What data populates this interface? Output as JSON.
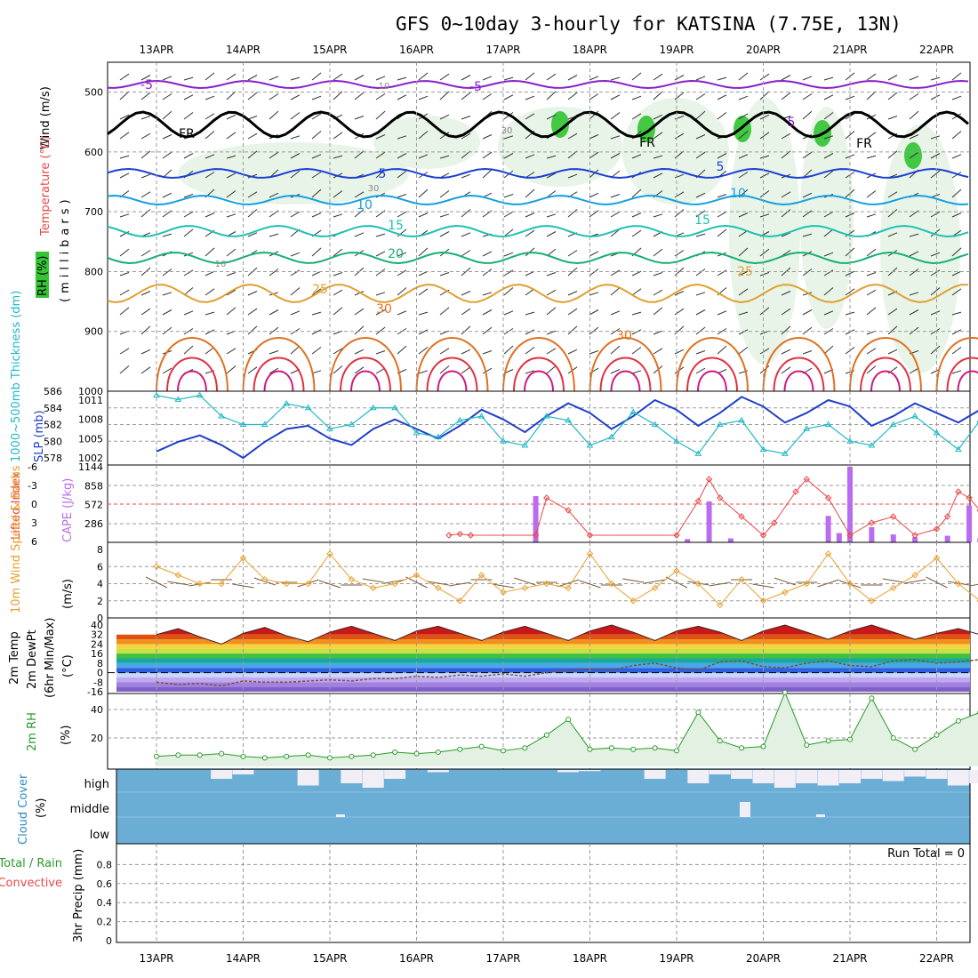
{
  "title": "GFS 0~10day 3-hourly for KATSINA (7.75E, 13N)",
  "dates": [
    "13APR",
    "14APR",
    "15APR",
    "16APR",
    "17APR",
    "18APR",
    "19APR",
    "20APR",
    "21APR",
    "22APR"
  ],
  "colors": {
    "grid": "#9a9a9a",
    "temp_blue": "#1a3fd6",
    "slp_blue": "#1f3fc8",
    "thickness_cyan": "#22b8c4",
    "cape_purple": "#b96cf0",
    "lifted_red": "#e84848",
    "wind_orange": "#e8a030",
    "barb_brown": "#7a5a3a",
    "rh_green": "#2a9a2a",
    "cloud_blue": "#6aaed6",
    "freezing_black": "#000000"
  },
  "panels": {
    "profile": {
      "ylabel_wind": "Wind (m/s)",
      "ylabel_temp": "Temperature (°C)",
      "ylabel_rh": "RH (%)",
      "ylabel_units": "(millibars)",
      "yticks": [
        "500",
        "600",
        "700",
        "800",
        "900",
        "1000"
      ]
    },
    "thickness_slp": {
      "ylabel_thick": "1000~500mb Thickness (dm)",
      "ylabel_slp": "SLP (mb)",
      "yticks_left": [
        "586",
        "584",
        "582",
        "580",
        "578"
      ],
      "yticks_right": [
        "1011",
        "1008",
        "1005",
        "1002"
      ]
    },
    "cape": {
      "ylabel_li": "Lifted Index",
      "ylabel_cape": "CAPE (J/kg)",
      "yticks_left": [
        "-6",
        "-3",
        "0",
        "3",
        "6"
      ],
      "yticks_right": [
        "1144",
        "858",
        "572",
        "286"
      ]
    },
    "wind10": {
      "ylabel": "10m Wind Speed & Barbs",
      "units": "(m/s)",
      "yticks": [
        "8",
        "6",
        "4",
        "2",
        "0"
      ]
    },
    "temp2m": {
      "ylabel1": "2m Temp",
      "ylabel2": "2m DewPt",
      "ylabel3": "(6hr Min/Max)",
      "units": "(°C)",
      "yticks": [
        "40",
        "32",
        "24",
        "16",
        "8",
        "0",
        "-8",
        "-16"
      ]
    },
    "rh2m": {
      "ylabel": "2m RH",
      "units": "(%)",
      "yticks": [
        "40",
        "20"
      ]
    },
    "cloud": {
      "ylabel": "Cloud Cover",
      "units": "(%)",
      "levels": [
        "high",
        "middle",
        "low"
      ]
    },
    "precip": {
      "ylabel1": "Total / Rain",
      "ylabel2": "Convective",
      "ylabel3": "3hr Precip (mm)",
      "run_total": "Run Total = 0",
      "yticks": [
        "0.8",
        "0.6",
        "0.4",
        "0.2",
        "0"
      ]
    }
  },
  "contour_labels": {
    "temperature": [
      "-5",
      "-5",
      "5",
      "5",
      "5",
      "10",
      "10",
      "15",
      "15",
      "20",
      "25",
      "25",
      "30",
      "30",
      "FR",
      "FR",
      "FR"
    ],
    "rh": [
      "10",
      "10",
      "30",
      "30"
    ]
  },
  "chart_data": [
    {
      "type": "line",
      "name": "thickness_slp",
      "x_days": [
        0,
        0.25,
        0.5,
        0.75,
        1,
        1.25,
        1.5,
        1.75,
        2,
        2.25,
        2.5,
        2.75,
        3,
        3.25,
        3.5,
        3.75,
        4,
        4.25,
        4.5,
        4.75,
        5,
        5.25,
        5.5,
        5.75,
        6,
        6.25,
        6.5,
        6.75,
        7,
        7.25,
        7.5,
        7.75,
        8,
        8.25,
        8.5,
        8.75,
        9,
        9.25,
        9.5,
        9.75
      ],
      "series": [
        {
          "name": "1000~500mb Thickness (dm)",
          "axis": "left",
          "values": [
            585.5,
            585,
            585.5,
            583,
            582,
            582,
            584.5,
            584,
            581.5,
            582,
            584,
            584,
            581,
            580.5,
            582.5,
            583,
            580,
            579.5,
            583,
            582.5,
            579.5,
            580.5,
            583.5,
            582,
            580,
            578.5,
            582,
            582.5,
            579,
            578.5,
            581.5,
            582,
            580,
            579.5,
            582,
            583,
            581,
            579,
            582.5,
            583
          ]
        },
        {
          "name": "SLP (mb)",
          "axis": "right",
          "values": [
            1003,
            1004.5,
            1005.5,
            1004,
            1002,
            1004.5,
            1006.5,
            1007,
            1005,
            1004,
            1006.5,
            1008,
            1006.5,
            1005,
            1007,
            1009.5,
            1008,
            1006,
            1008.5,
            1010.5,
            1009,
            1006.5,
            1008.5,
            1011,
            1009.5,
            1007,
            1009,
            1011.5,
            1010,
            1007.5,
            1009,
            1011,
            1010,
            1007,
            1008.5,
            1010.5,
            1009,
            1007.5,
            1009.5,
            1010
          ]
        }
      ]
    },
    {
      "type": "bar",
      "name": "cape",
      "x_days": [
        4.375,
        5.0,
        6.125,
        6.375,
        6.625,
        7.75,
        7.875,
        8.0,
        8.25,
        8.5,
        8.75,
        9.125,
        9.375,
        9.5
      ],
      "values": [
        700,
        0,
        50,
        620,
        60,
        400,
        140,
        1144,
        230,
        120,
        80,
        100,
        560,
        60
      ],
      "ylim": [
        0,
        1144
      ]
    },
    {
      "type": "line",
      "name": "lifted_index",
      "x_days": [
        3.375,
        3.5,
        3.625,
        4.375,
        4.5,
        4.75,
        5.0,
        6.0,
        6.25,
        6.375,
        6.5,
        6.75,
        7.0,
        7.125,
        7.375,
        7.5,
        7.75,
        8.0,
        8.25,
        8.5,
        8.75,
        9.0,
        9.125,
        9.25,
        9.375,
        9.5,
        9.75
      ],
      "values": [
        5,
        4.8,
        5,
        5,
        -1,
        1,
        5,
        5,
        -0.5,
        -4,
        -1,
        2,
        5,
        3,
        -2,
        -4,
        -1,
        5,
        3,
        2,
        5,
        4,
        2,
        -2,
        -1,
        1,
        3
      ],
      "ylim": [
        6,
        -6
      ]
    },
    {
      "type": "line",
      "name": "wind10m",
      "x_days": [
        0,
        0.25,
        0.5,
        0.75,
        1,
        1.25,
        1.5,
        1.75,
        2,
        2.25,
        2.5,
        2.75,
        3,
        3.25,
        3.5,
        3.75,
        4,
        4.25,
        4.5,
        4.75,
        5,
        5.25,
        5.5,
        5.75,
        6,
        6.25,
        6.5,
        6.75,
        7,
        7.25,
        7.5,
        7.75,
        8,
        8.25,
        8.5,
        8.75,
        9,
        9.25,
        9.5,
        9.75
      ],
      "values": [
        6,
        5,
        4,
        4,
        7,
        4.5,
        4,
        4,
        7.5,
        4.5,
        3.5,
        4,
        5,
        3.5,
        2,
        5,
        3,
        3.5,
        4,
        3.5,
        7.5,
        4,
        2,
        3.5,
        5.5,
        4,
        1.5,
        4.5,
        2,
        3,
        4,
        7.5,
        4,
        2,
        3.5,
        5,
        7,
        4,
        2,
        3.5
      ],
      "ylim": [
        0,
        8
      ]
    },
    {
      "type": "area",
      "name": "temp2m",
      "x_days": [
        0,
        0.25,
        0.5,
        0.75,
        1,
        1.25,
        1.5,
        1.75,
        2,
        2.25,
        2.5,
        2.75,
        3,
        3.25,
        3.5,
        3.75,
        4,
        4.25,
        4.5,
        4.75,
        5,
        5.25,
        5.5,
        5.75,
        6,
        6.25,
        6.5,
        6.75,
        7,
        7.25,
        7.5,
        7.75,
        8,
        8.25,
        8.5,
        8.75,
        9,
        9.25,
        9.5,
        9.75
      ],
      "series": [
        {
          "name": "2m Temp",
          "values": [
            32,
            37,
            30,
            24,
            33,
            38,
            31,
            26,
            34,
            39,
            33,
            27,
            35,
            39,
            33,
            27,
            34,
            39,
            33,
            27,
            35,
            40,
            34,
            27,
            35,
            39,
            34,
            27,
            35,
            40,
            34,
            28,
            35,
            40,
            34,
            28,
            33,
            37,
            32,
            28
          ]
        },
        {
          "name": "2m DewPt",
          "values": [
            -8,
            -10,
            -9,
            -11,
            -7,
            -8,
            -8,
            -7,
            -6,
            -7,
            -5,
            -5,
            -3,
            -4,
            -2,
            -3,
            -1,
            -3,
            0,
            2,
            3,
            2,
            6,
            8,
            4,
            2,
            9,
            10,
            5,
            4,
            8,
            10,
            6,
            5,
            10,
            11,
            8,
            9,
            11,
            12
          ]
        }
      ],
      "ylim": [
        -16,
        40
      ]
    },
    {
      "type": "area",
      "name": "rh2m",
      "x_days": [
        0,
        0.25,
        0.5,
        0.75,
        1,
        1.25,
        1.5,
        1.75,
        2,
        2.25,
        2.5,
        2.75,
        3,
        3.25,
        3.5,
        3.75,
        4,
        4.25,
        4.5,
        4.75,
        5,
        5.25,
        5.5,
        5.75,
        6,
        6.25,
        6.5,
        6.75,
        7,
        7.25,
        7.5,
        7.75,
        8,
        8.25,
        8.5,
        8.75,
        9,
        9.25,
        9.5,
        9.75
      ],
      "values": [
        7,
        8,
        8,
        9,
        7,
        6,
        7,
        8,
        6,
        7,
        8,
        10,
        9,
        10,
        12,
        14,
        11,
        13,
        22,
        33,
        12,
        13,
        12,
        13,
        11,
        38,
        18,
        13,
        14,
        52,
        15,
        18,
        19,
        48,
        20,
        12,
        22,
        32,
        38,
        40
      ],
      "ylim": [
        0,
        50
      ]
    },
    {
      "type": "bar",
      "name": "cloud_high",
      "x_days": [
        0.25,
        0.5,
        0.75,
        1,
        1.25,
        1.5,
        1.75,
        2,
        2.25,
        2.5,
        2.75,
        3,
        3.25,
        3.5,
        3.75,
        4,
        4.25,
        4.5,
        4.75,
        5,
        5.25,
        5.5,
        5.75,
        6,
        6.25,
        6.5,
        6.75,
        7,
        7.25,
        7.5,
        7.75,
        8,
        8.25,
        8.5,
        8.75,
        9,
        9.25,
        9.5,
        9.75
      ],
      "values": [
        100,
        100,
        60,
        80,
        100,
        100,
        30,
        100,
        40,
        20,
        60,
        100,
        90,
        100,
        100,
        100,
        100,
        100,
        90,
        95,
        100,
        100,
        60,
        100,
        40,
        80,
        60,
        40,
        20,
        40,
        30,
        40,
        60,
        50,
        70,
        60,
        30,
        40,
        70
      ],
      "ylim": [
        0,
        100
      ]
    },
    {
      "type": "bar",
      "name": "precip3hr",
      "x_days": [],
      "values": [],
      "ylim": [
        0,
        1
      ]
    }
  ]
}
